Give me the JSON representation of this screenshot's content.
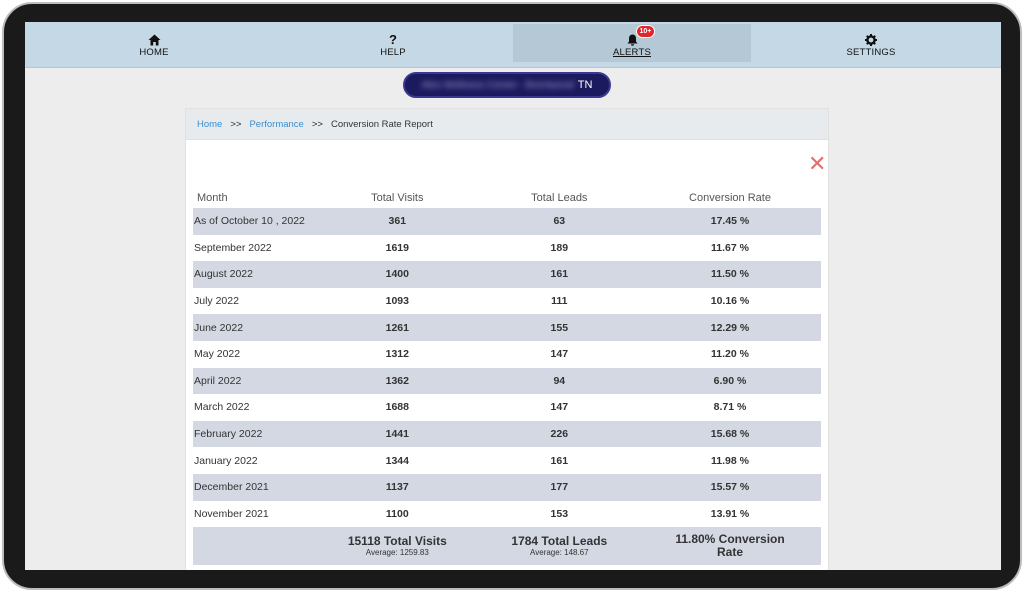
{
  "nav": {
    "home": "HOME",
    "help": "HELP",
    "alerts": "ALERTS",
    "alerts_badge": "10+",
    "settings": "SETTINGS"
  },
  "account": {
    "name_redacted": "Alex Wellness Center - Brentwood",
    "state": "TN"
  },
  "breadcrumb": {
    "home": "Home",
    "sep1": ">>",
    "performance": "Performance",
    "sep2": ">>",
    "current": "Conversion Rate Report"
  },
  "close_glyph": "✕",
  "table": {
    "headers": [
      "Month",
      "Total Visits",
      "Total Leads",
      "Conversion Rate"
    ],
    "rows": [
      [
        "As of October 10 , 2022",
        "361",
        "63",
        "17.45 %"
      ],
      [
        "September 2022",
        "1619",
        "189",
        "11.67 %"
      ],
      [
        "August 2022",
        "1400",
        "161",
        "11.50 %"
      ],
      [
        "July 2022",
        "1093",
        "111",
        "10.16 %"
      ],
      [
        "June 2022",
        "1261",
        "155",
        "12.29 %"
      ],
      [
        "May 2022",
        "1312",
        "147",
        "11.20 %"
      ],
      [
        "April 2022",
        "1362",
        "94",
        "6.90 %"
      ],
      [
        "March 2022",
        "1688",
        "147",
        "8.71 %"
      ],
      [
        "February 2022",
        "1441",
        "226",
        "15.68 %"
      ],
      [
        "January 2022",
        "1344",
        "161",
        "11.98 %"
      ],
      [
        "December 2021",
        "1137",
        "177",
        "15.57 %"
      ],
      [
        "November 2021",
        "1100",
        "153",
        "13.91 %"
      ]
    ],
    "totals": {
      "visits": "15118 Total Visits",
      "visits_avg": "Average: 1259.83",
      "leads": "1784 Total Leads",
      "leads_avg": "Average: 148.67",
      "rate_line1": "11.80% Conversion",
      "rate_line2": "Rate"
    }
  },
  "colors": {
    "nav_bg": "#c5d8e5",
    "pill_bg": "#1c1a5e",
    "row_shade": "#d3d8e3",
    "link": "#3b8fd0",
    "close": "#e36f6f",
    "badge": "#e0252b"
  }
}
